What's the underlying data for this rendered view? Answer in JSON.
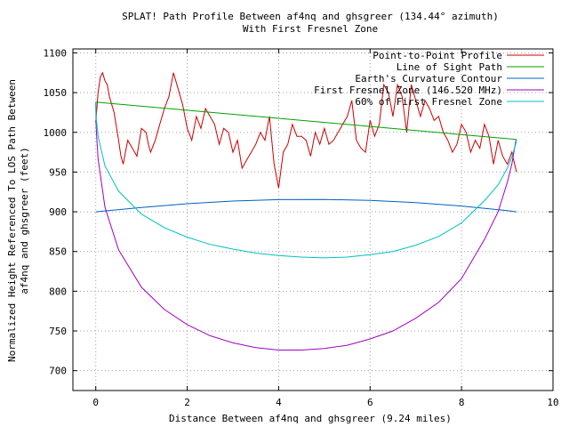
{
  "chart_data": {
    "type": "line",
    "title": "SPLAT! Path Profile Between af4nq and ghsgreer (134.44° azimuth)",
    "subtitle": "With First Fresnel Zone",
    "xlabel": "Distance Between af4nq and ghsgreer (9.24 miles)",
    "ylabel_line1": "Normalized Height Referenced To LOS Path Between",
    "ylabel_line2": "af4nq and ghsgreer (feet)",
    "xlim": [
      -0.5,
      10
    ],
    "ylim": [
      675,
      1105
    ],
    "xticks": [
      0,
      2,
      4,
      6,
      8,
      10
    ],
    "xtick_labels": [
      "0",
      "2",
      "4",
      "6",
      "8",
      "10"
    ],
    "yticks": [
      700,
      750,
      800,
      850,
      900,
      950,
      1000,
      1050,
      1100
    ],
    "ytick_labels": [
      "700",
      "750",
      "800",
      "850",
      "900",
      "950",
      "1000",
      "1050",
      "1100"
    ],
    "grid": true,
    "legend_position": "top-right",
    "series": [
      {
        "name": "Point-to-Point Profile",
        "color": "#cc0000",
        "x": [
          0,
          0.05,
          0.1,
          0.15,
          0.2,
          0.25,
          0.3,
          0.4,
          0.5,
          0.55,
          0.6,
          0.65,
          0.7,
          0.8,
          0.9,
          1.0,
          1.1,
          1.15,
          1.2,
          1.3,
          1.4,
          1.5,
          1.6,
          1.7,
          1.8,
          1.9,
          2.0,
          2.1,
          2.2,
          2.3,
          2.4,
          2.5,
          2.6,
          2.7,
          2.8,
          2.9,
          3.0,
          3.1,
          3.2,
          3.3,
          3.4,
          3.5,
          3.6,
          3.7,
          3.8,
          3.9,
          4.0,
          4.1,
          4.2,
          4.3,
          4.4,
          4.5,
          4.6,
          4.7,
          4.8,
          4.9,
          5.0,
          5.1,
          5.2,
          5.3,
          5.4,
          5.5,
          5.6,
          5.7,
          5.8,
          5.9,
          6.0,
          6.1,
          6.2,
          6.3,
          6.4,
          6.5,
          6.6,
          6.7,
          6.8,
          6.9,
          7.0,
          7.1,
          7.2,
          7.3,
          7.4,
          7.5,
          7.6,
          7.7,
          7.8,
          7.9,
          8.0,
          8.1,
          8.2,
          8.3,
          8.4,
          8.5,
          8.6,
          8.7,
          8.8,
          8.9,
          9.0,
          9.1,
          9.2
        ],
        "values": [
          1012,
          1050,
          1070,
          1075,
          1065,
          1060,
          1045,
          1025,
          990,
          970,
          960,
          975,
          990,
          980,
          970,
          1005,
          1000,
          985,
          975,
          990,
          1010,
          1030,
          1045,
          1075,
          1055,
          1035,
          1005,
          990,
          1020,
          1005,
          1030,
          1020,
          1010,
          985,
          1005,
          1000,
          975,
          990,
          955,
          965,
          975,
          985,
          1000,
          990,
          1020,
          960,
          930,
          975,
          985,
          1010,
          995,
          995,
          990,
          970,
          1000,
          985,
          1005,
          985,
          990,
          1000,
          1010,
          1020,
          1040,
          990,
          980,
          975,
          1015,
          995,
          1010,
          1060,
          1050,
          1020,
          1060,
          1045,
          1000,
          1060,
          1040,
          1020,
          1040,
          1030,
          1015,
          1020,
          1000,
          990,
          975,
          985,
          1010,
          1000,
          975,
          990,
          980,
          1010,
          995,
          960,
          990,
          970,
          960,
          975,
          950
        ]
      },
      {
        "name": "Line of Sight Path",
        "color": "#00a000",
        "x": [
          0,
          9.2
        ],
        "values": [
          1038,
          991
        ]
      },
      {
        "name": "Earth's Curvature Contour",
        "color": "#0060c0",
        "x": [
          0,
          1,
          2,
          3,
          4,
          5,
          6,
          7,
          8,
          9,
          9.2
        ],
        "values": [
          900,
          905.5,
          910.2,
          913.5,
          915.3,
          915.5,
          914.3,
          911.5,
          907.2,
          901.4,
          900
        ]
      },
      {
        "name": "First Fresnel Zone (146.520 MHz)",
        "color": "#a000c0",
        "x": [
          0,
          0.01,
          0.05,
          0.2,
          0.5,
          1,
          1.5,
          2,
          2.5,
          3,
          3.5,
          4,
          4.5,
          5,
          5.5,
          6,
          6.5,
          7,
          7.5,
          8,
          8.5,
          8.8,
          9,
          9.1,
          9.19,
          9.2
        ],
        "values": [
          1038,
          1005,
          967,
          906,
          852,
          805,
          777,
          758,
          744,
          735,
          729,
          726,
          726,
          728,
          732,
          740,
          750,
          766,
          786,
          816,
          865,
          900,
          937,
          960,
          990,
          991
        ]
      },
      {
        "name": "60% of First Fresnel Zone",
        "color": "#00c0c0",
        "x": [
          0,
          0.01,
          0.05,
          0.2,
          0.5,
          1,
          1.5,
          2,
          2.5,
          3,
          3.5,
          4,
          4.5,
          5,
          5.5,
          6,
          6.5,
          7,
          7.5,
          8,
          8.5,
          8.8,
          9,
          9.1,
          9.19,
          9.2
        ],
        "values": [
          1038,
          1018,
          995,
          958,
          926,
          897,
          880,
          868,
          859,
          853,
          848,
          845,
          843,
          842,
          843,
          846,
          850,
          858,
          869,
          886,
          914,
          934,
          955,
          969,
          986,
          991
        ]
      }
    ]
  }
}
